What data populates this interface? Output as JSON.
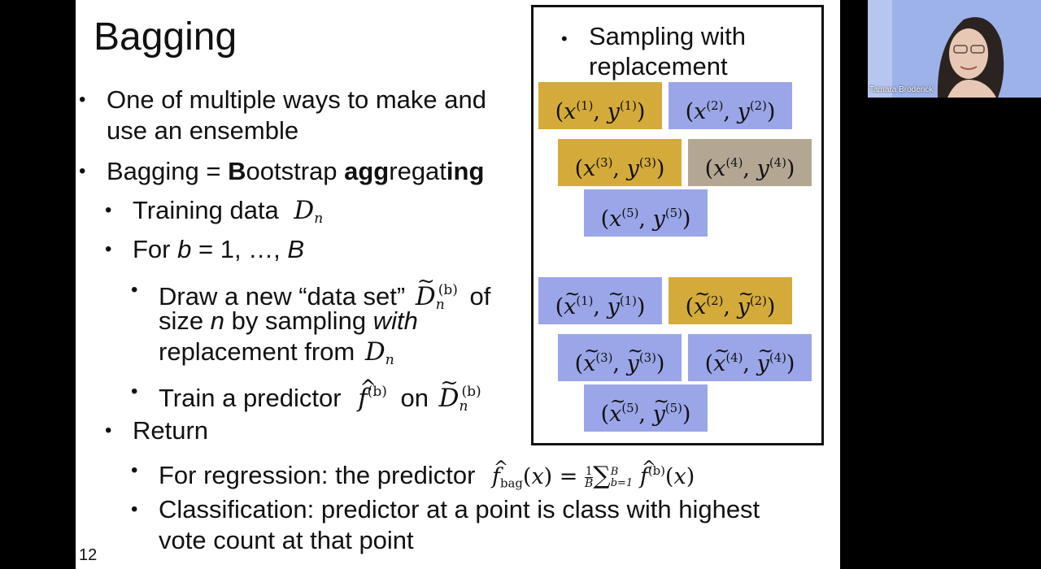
{
  "slide": {
    "title": "Bagging",
    "page_number": "12",
    "bullet": "•",
    "b1": "One of multiple ways to make and",
    "b1_cont": "use an ensemble",
    "b2_pre": "Bagging = ",
    "b2_B": "B",
    "b2_ootstrap": "ootstrap ",
    "b2_agg": "agg",
    "b2_regat": "regat",
    "b2_ing": "ing",
    "training_data": "Training data",
    "for_pre": "For",
    "for_b": "b",
    "for_mid": "= 1, …,",
    "for_B": "B",
    "draw_1": "Draw a new “data set”",
    "draw_of": "of",
    "draw_2a": "size",
    "draw_2n": "n",
    "draw_2b": "by sampling",
    "draw_with": "with",
    "draw_3": "replacement from",
    "train_pre": "Train a predictor",
    "train_on": "on",
    "return": "Return",
    "regression": "For regression: the predictor",
    "class_1": "Classification: predictor at a point is class with highest",
    "class_2": "vote count at that point"
  },
  "box": {
    "heading_1": "Sampling with",
    "heading_2": "replacement",
    "original": [
      {
        "i": "1",
        "color": "#d4ab3a"
      },
      {
        "i": "2",
        "color": "#9aa6e8"
      },
      {
        "i": "3",
        "color": "#d4ab3a"
      },
      {
        "i": "4",
        "color": "#b3a794"
      },
      {
        "i": "5",
        "color": "#9aa6e8"
      }
    ],
    "resampled": [
      {
        "i": "1",
        "color": "#9aa6e8"
      },
      {
        "i": "2",
        "color": "#d4ab3a"
      },
      {
        "i": "3",
        "color": "#9aa6e8"
      },
      {
        "i": "4",
        "color": "#9aa6e8"
      },
      {
        "i": "5",
        "color": "#9aa6e8"
      }
    ]
  },
  "webcam": {
    "name": "Tamara Broderick"
  }
}
